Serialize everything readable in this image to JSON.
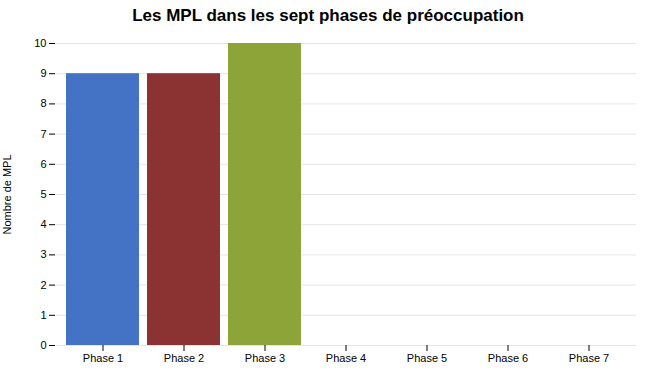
{
  "chart_data": {
    "type": "bar",
    "title": "Les MPL dans les sept phases de préoccupation",
    "ylabel": "Nombre de MPL",
    "categories": [
      "Phase 1",
      "Phase 2",
      "Phase 3",
      "Phase 4",
      "Phase 5",
      "Phase 6",
      "Phase 7"
    ],
    "values": [
      9,
      9,
      10,
      0,
      0,
      0,
      0
    ],
    "colors": [
      "#4472C4",
      "#8B3232",
      "#8DA538",
      "#4472C4",
      "#4472C4",
      "#4472C4",
      "#4472C4"
    ],
    "ylim": [
      0,
      10
    ],
    "yticks": [
      0,
      1,
      2,
      3,
      4,
      5,
      6,
      7,
      8,
      9,
      10
    ],
    "grid": true
  }
}
